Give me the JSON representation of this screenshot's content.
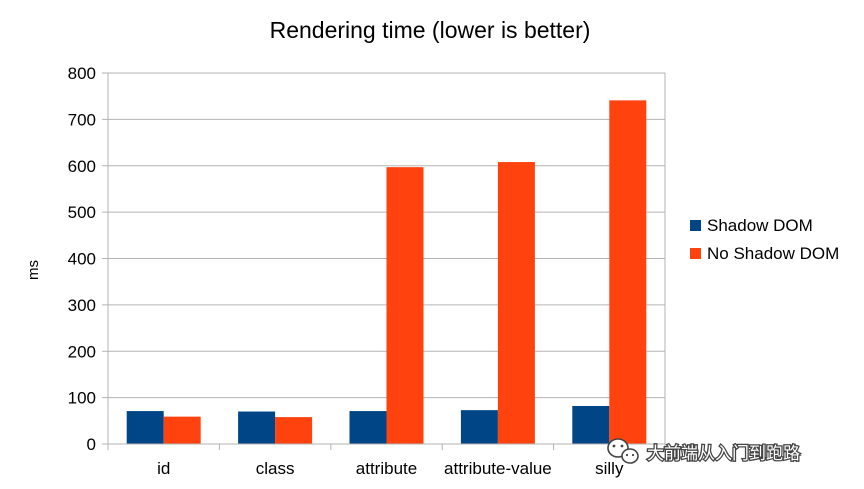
{
  "chart_data": {
    "type": "bar",
    "title": "Rendering time (lower is better)",
    "xlabel": "",
    "ylabel": "ms",
    "ylim": [
      0,
      800
    ],
    "yticks": [
      0,
      100,
      200,
      300,
      400,
      500,
      600,
      700,
      800
    ],
    "grid": true,
    "legend": "right",
    "categories": [
      "id",
      "class",
      "attribute",
      "attribute-value",
      "silly"
    ],
    "series": [
      {
        "name": "Shadow DOM",
        "color": "#004586",
        "values": [
          71,
          70,
          71,
          73,
          82
        ]
      },
      {
        "name": "No Shadow DOM",
        "color": "#ff420e",
        "values": [
          59,
          58,
          597,
          608,
          741
        ]
      }
    ]
  },
  "watermark": {
    "icon": "wechat-icon",
    "text": "大前端从入门到跑路"
  }
}
